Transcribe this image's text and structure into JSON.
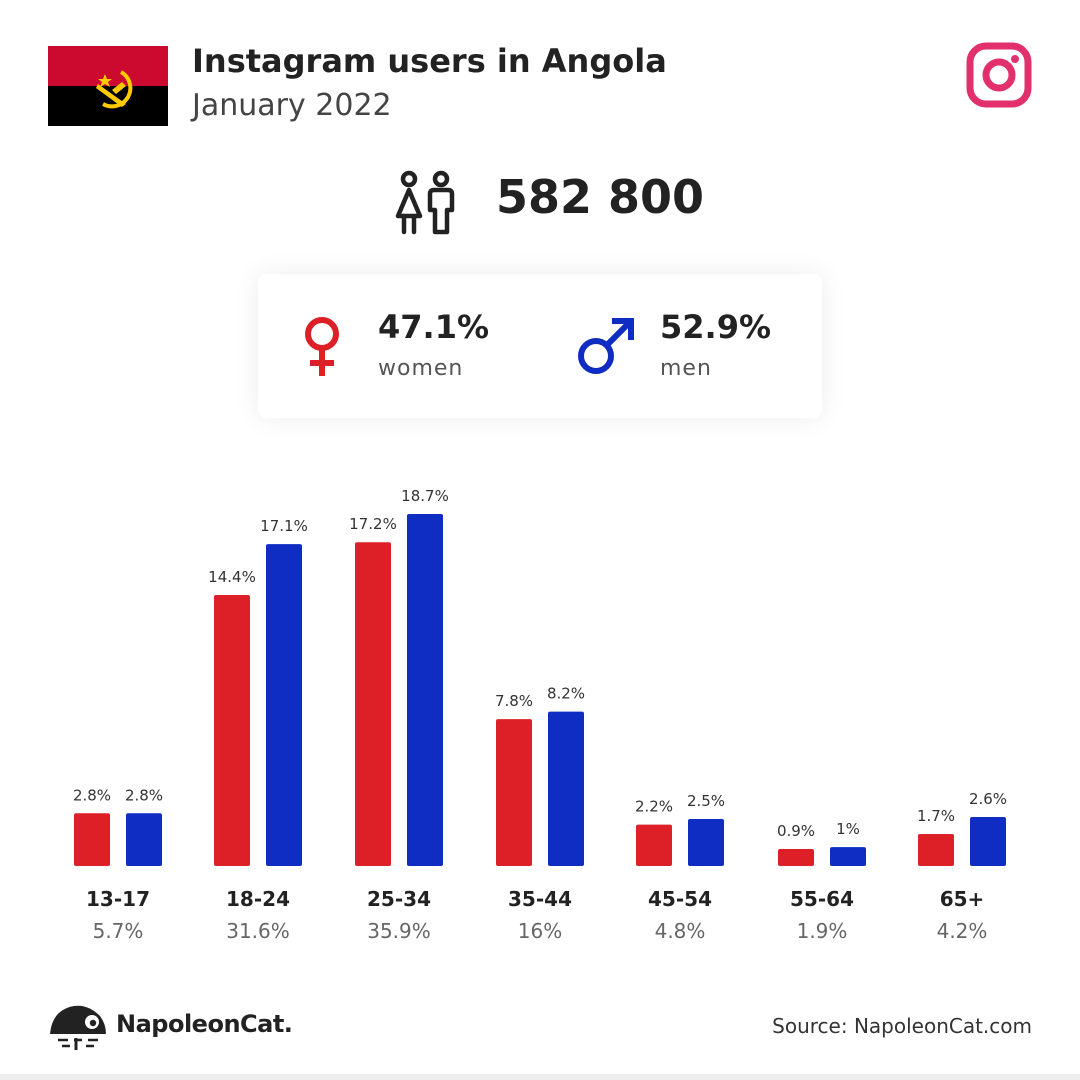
{
  "header": {
    "title": "Instagram users in Angola",
    "subtitle": "January 2022"
  },
  "icons": {
    "flag": "angola-flag-icon",
    "platform": "instagram-icon",
    "people": "people-icon",
    "female": "female-symbol-icon",
    "male": "male-symbol-icon",
    "brand": "napoleoncat-logo-icon"
  },
  "colors": {
    "women": "#dd2027",
    "men": "#0f2cc3",
    "instagram": "#e1306c",
    "flag_red": "#cc092f",
    "flag_black": "#000000",
    "flag_emblem": "#ffcb00"
  },
  "total": "582 800",
  "gender": {
    "women_pct": "47.1%",
    "women_label": "women",
    "men_pct": "52.9%",
    "men_label": "men"
  },
  "chart_data": {
    "type": "bar",
    "categories": [
      "13-17",
      "18-24",
      "25-34",
      "35-44",
      "45-54",
      "55-64",
      "65+"
    ],
    "category_totals": [
      "5.7%",
      "31.6%",
      "35.9%",
      "16%",
      "4.8%",
      "1.9%",
      "4.2%"
    ],
    "series": [
      {
        "key": "women",
        "values": [
          2.8,
          14.4,
          17.2,
          7.8,
          2.2,
          0.9,
          1.7
        ],
        "labels": [
          "2.8%",
          "14.4%",
          "17.2%",
          "7.8%",
          "2.2%",
          "0.9%",
          "1.7%"
        ]
      },
      {
        "key": "men",
        "values": [
          2.8,
          17.1,
          18.7,
          8.2,
          2.5,
          1,
          2.6
        ],
        "labels": [
          "2.8%",
          "17.1%",
          "18.7%",
          "8.2%",
          "2.5%",
          "1%",
          "2.6%"
        ]
      }
    ],
    "ylim": [
      0,
      18.7
    ],
    "grid": false,
    "legend": "none"
  },
  "footer": {
    "brand": "NapoleonCat.",
    "source": "Source: NapoleonCat.com"
  }
}
